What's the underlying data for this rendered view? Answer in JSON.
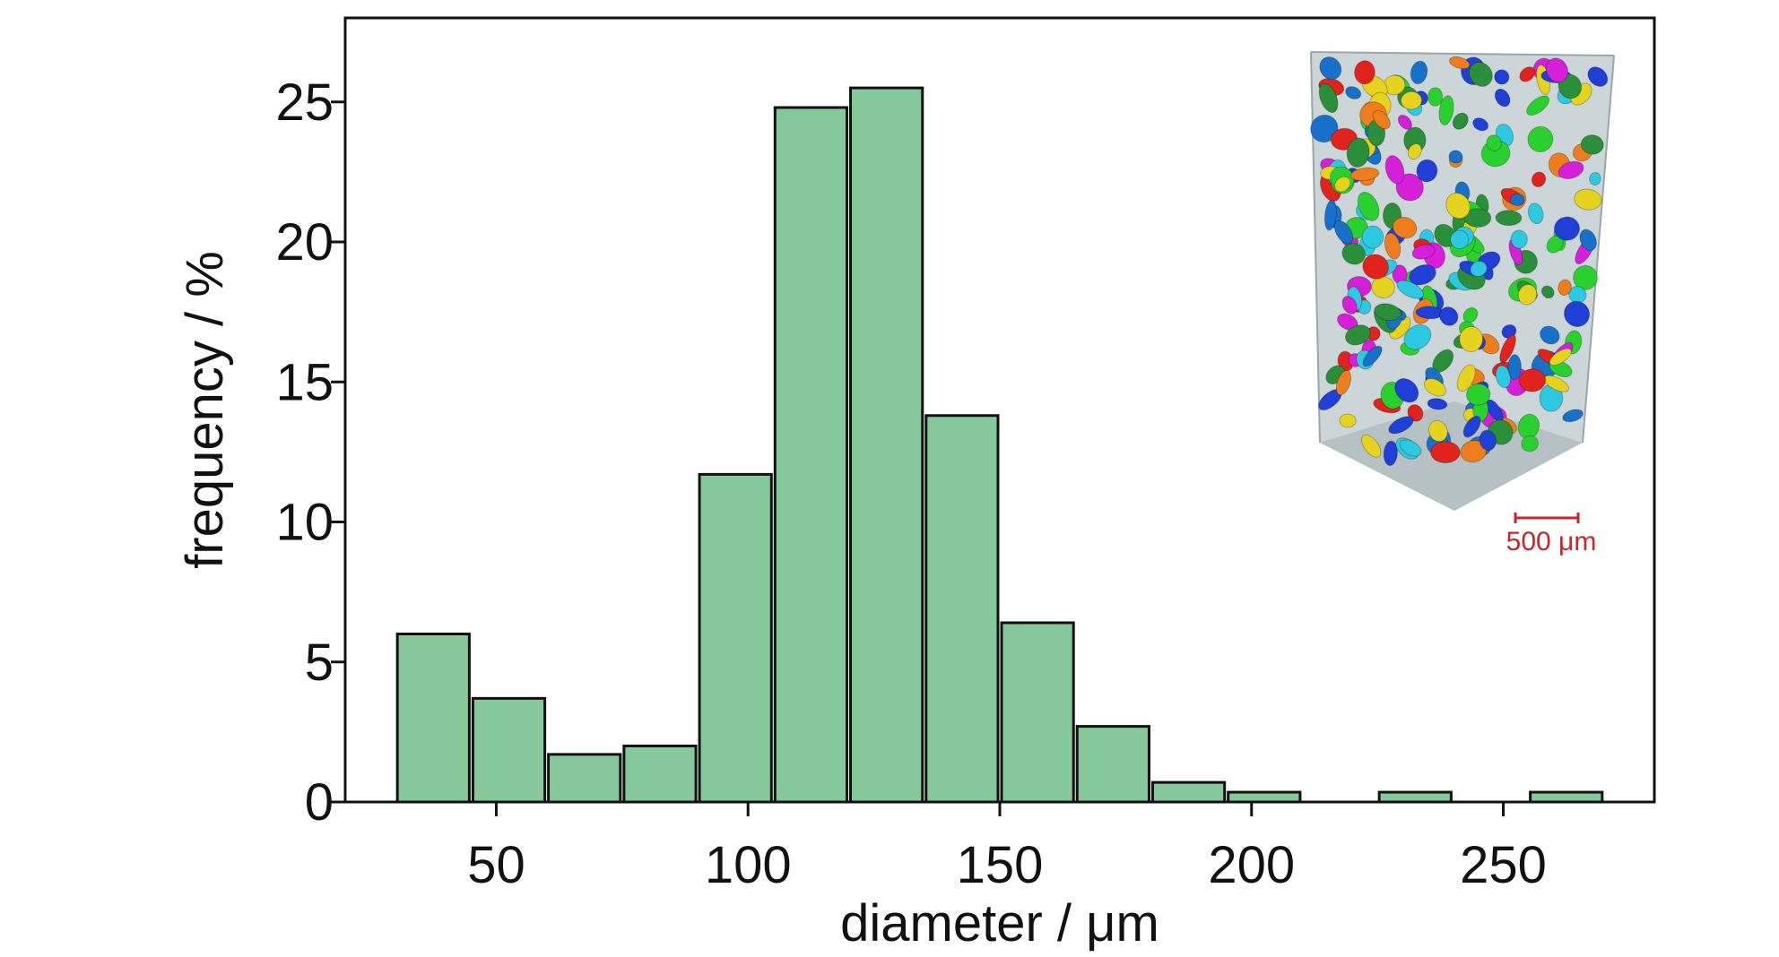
{
  "chart_data": {
    "type": "bar",
    "xlabel": "diameter / μm",
    "ylabel": "frequency / %",
    "xlim": [
      20,
      280
    ],
    "ylim": [
      0,
      28
    ],
    "bin_width": 15,
    "x_ticks": [
      50,
      100,
      150,
      200,
      250
    ],
    "y_ticks": [
      0,
      5,
      10,
      15,
      20,
      25
    ],
    "bins": [
      {
        "center": 37.5,
        "value": 6.0
      },
      {
        "center": 52.5,
        "value": 3.7
      },
      {
        "center": 67.5,
        "value": 1.7
      },
      {
        "center": 82.5,
        "value": 2.0
      },
      {
        "center": 97.5,
        "value": 11.7
      },
      {
        "center": 112.5,
        "value": 24.8
      },
      {
        "center": 127.5,
        "value": 25.5
      },
      {
        "center": 142.5,
        "value": 13.8
      },
      {
        "center": 157.5,
        "value": 6.4
      },
      {
        "center": 172.5,
        "value": 2.7
      },
      {
        "center": 187.5,
        "value": 0.7
      },
      {
        "center": 202.5,
        "value": 0.35
      },
      {
        "center": 232.5,
        "value": 0.35
      },
      {
        "center": 262.5,
        "value": 0.35
      }
    ],
    "bar_color": "#85c99a",
    "grid": false
  },
  "inset": {
    "scale_bar_label": "500 μm",
    "scale_bar_color": "#c4272f"
  }
}
